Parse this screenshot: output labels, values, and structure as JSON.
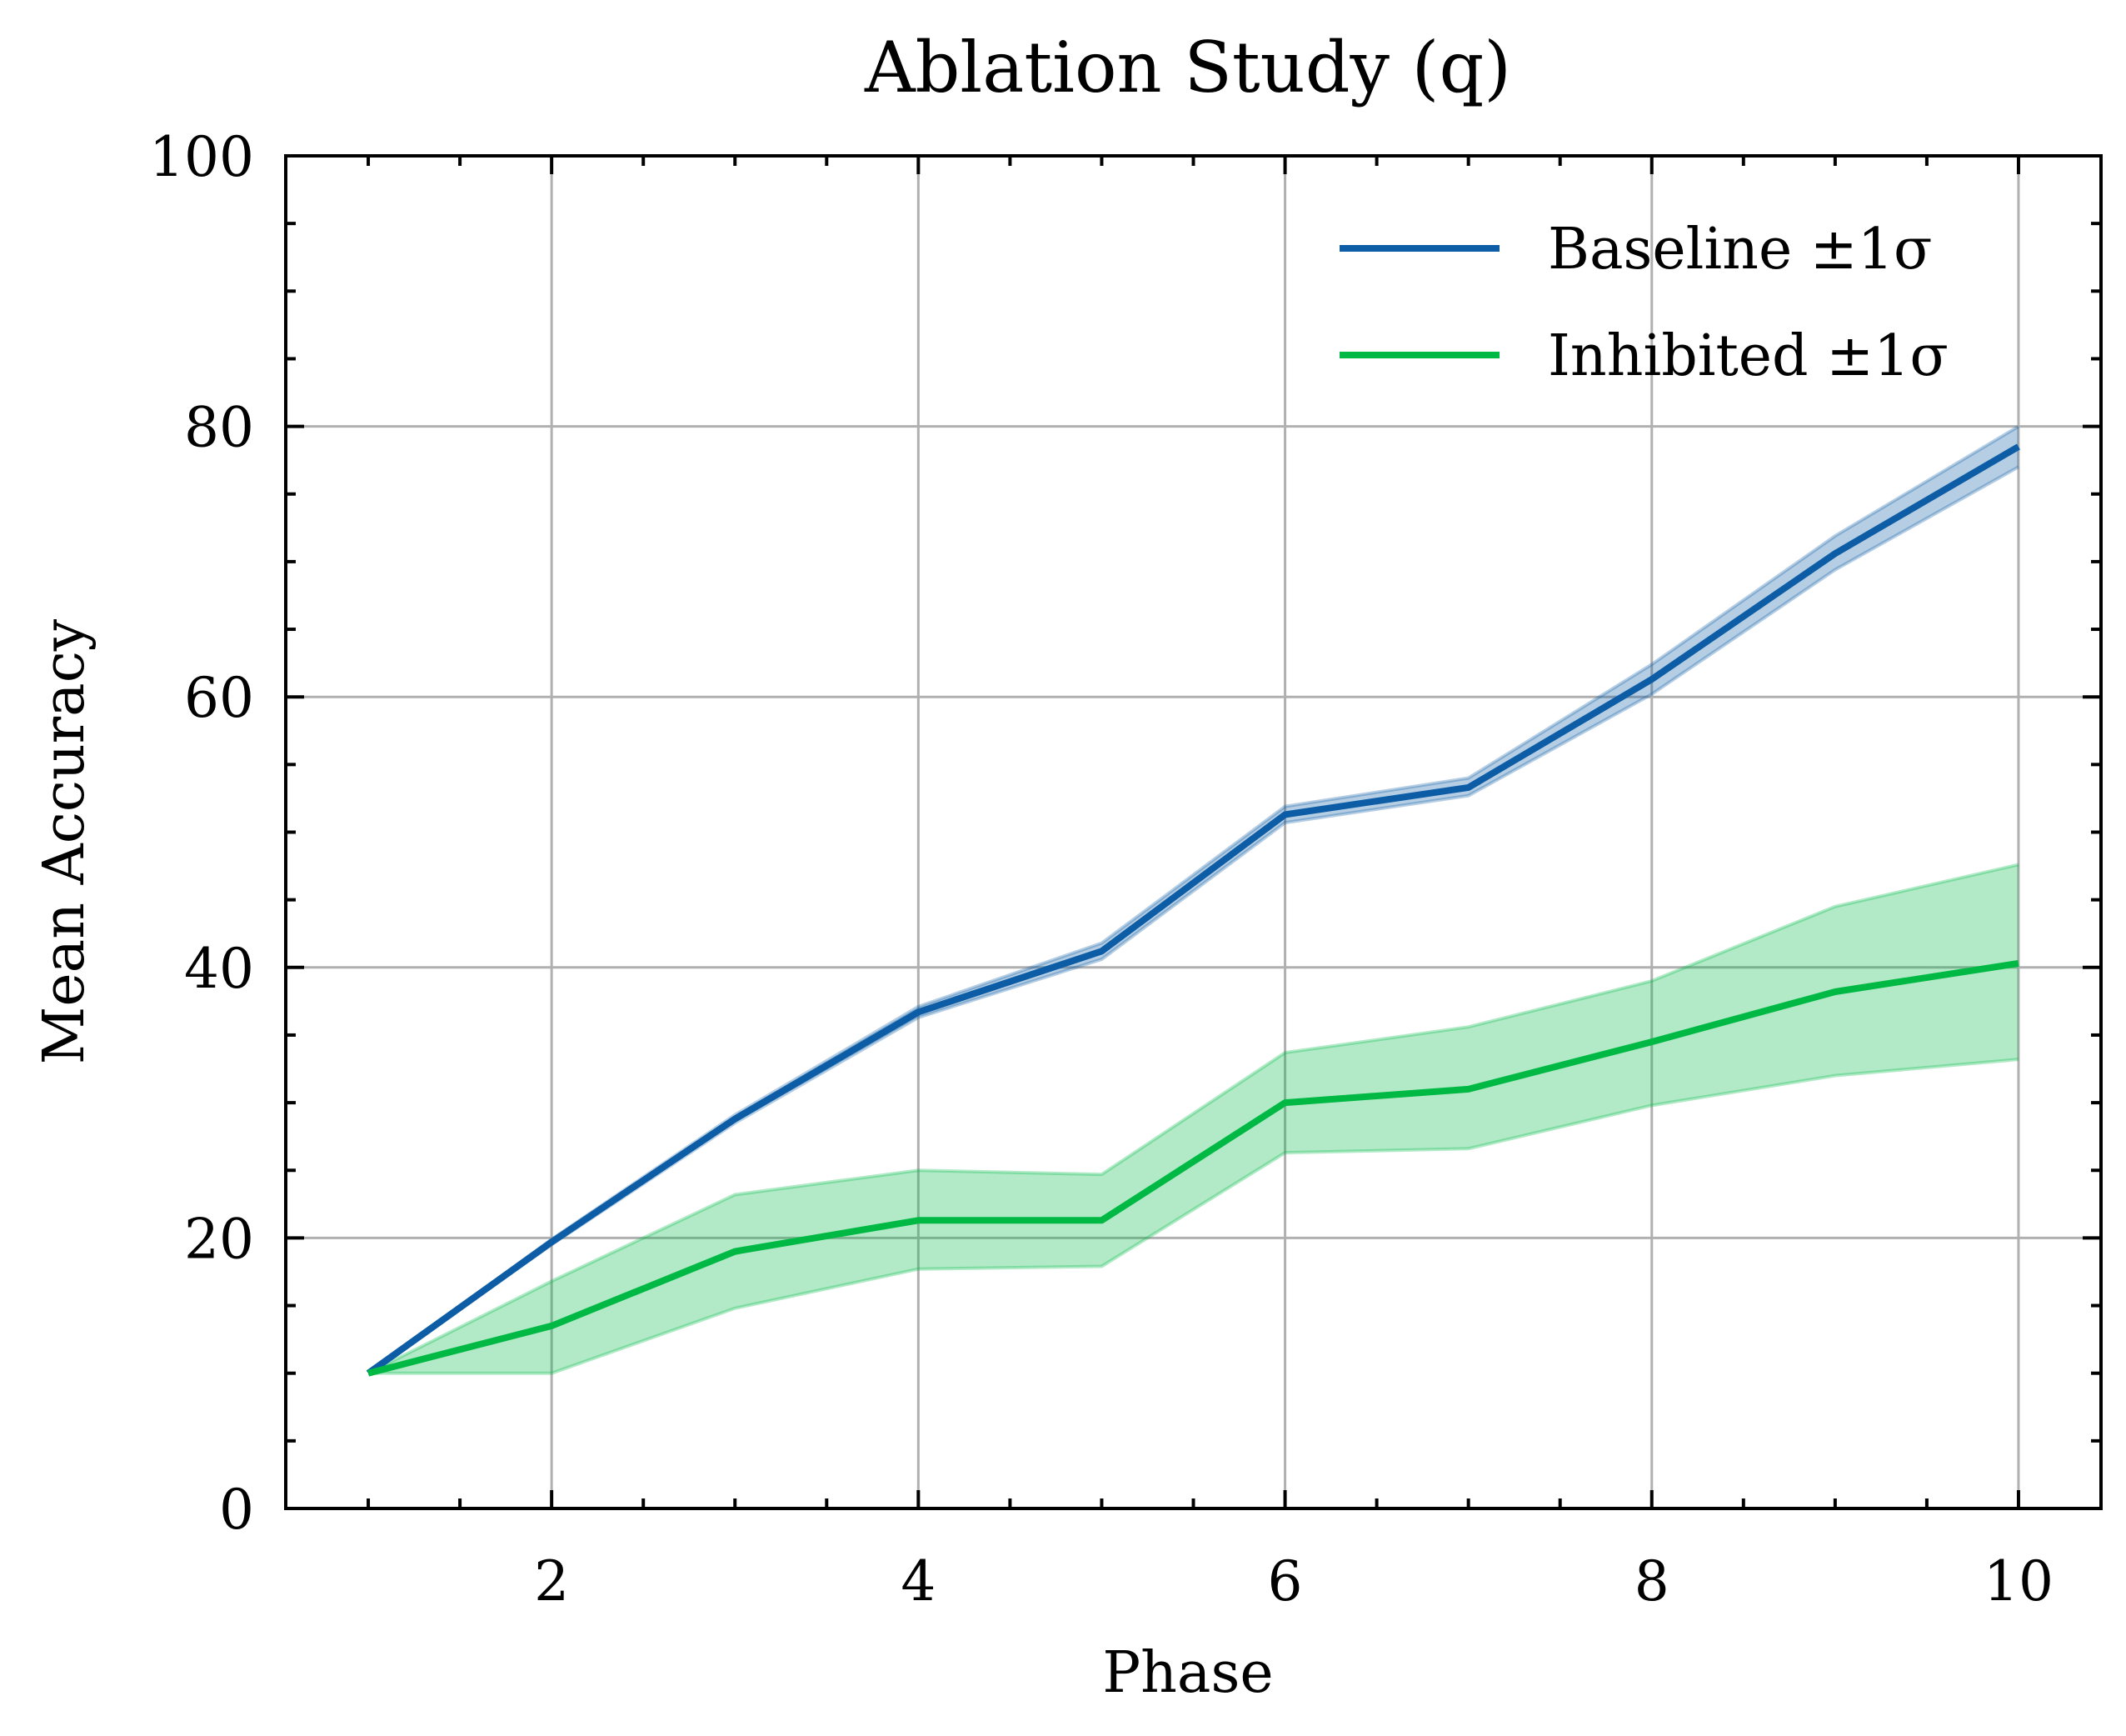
{
  "chart_data": {
    "type": "line",
    "title": "Ablation Study (q)",
    "xlabel": "Phase",
    "ylabel": "Mean Accuracy",
    "xlim": [
      0.55,
      10.45
    ],
    "ylim": [
      0,
      100
    ],
    "xticks": [
      2,
      4,
      6,
      8,
      10
    ],
    "yticks": [
      0,
      20,
      40,
      60,
      80,
      100
    ],
    "xtick_labels": [
      "2",
      "4",
      "6",
      "8",
      "10"
    ],
    "ytick_labels": [
      "0",
      "20",
      "40",
      "60",
      "80",
      "100"
    ],
    "grid": true,
    "legend_position": "top-right",
    "x": [
      1,
      2,
      3,
      4,
      5,
      6,
      7,
      8,
      9,
      10
    ],
    "series": [
      {
        "name": "Baseline ±1σ",
        "color": "#0c5da5",
        "band_color": "#0c5da5",
        "mean": [
          10.0,
          19.7,
          28.8,
          36.7,
          41.2,
          51.3,
          53.3,
          61.3,
          70.6,
          78.5
        ],
        "lower": [
          10.0,
          19.5,
          28.5,
          36.3,
          40.6,
          50.7,
          52.7,
          60.2,
          69.4,
          77.0
        ],
        "upper": [
          10.0,
          19.9,
          29.1,
          37.1,
          41.8,
          51.9,
          54.0,
          62.4,
          71.9,
          80.0
        ]
      },
      {
        "name": "Inhibited ±1σ",
        "color": "#00b945",
        "band_color": "#00b945",
        "mean": [
          10.0,
          13.5,
          19.0,
          21.3,
          21.3,
          30.0,
          31.0,
          34.5,
          38.2,
          40.3
        ],
        "lower": [
          10.0,
          10.0,
          14.8,
          17.7,
          17.9,
          26.3,
          26.6,
          29.8,
          32.0,
          33.2
        ],
        "upper": [
          10.0,
          16.8,
          23.2,
          25.0,
          24.7,
          33.7,
          35.6,
          39.0,
          44.5,
          47.6
        ]
      }
    ]
  }
}
